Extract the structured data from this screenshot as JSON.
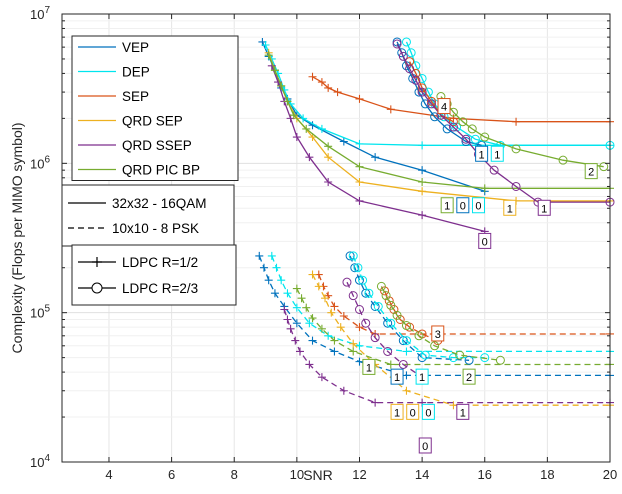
{
  "chart_data": {
    "type": "line",
    "xlabel": "SNR",
    "ylabel": "Complexity (Flops per MIMO symbol)",
    "xlim": [
      2.5,
      20
    ],
    "ylim": [
      10000,
      10000000
    ],
    "y_scale": "log",
    "grid": true,
    "xticks": [
      4,
      6,
      8,
      10,
      12,
      14,
      16,
      18,
      20
    ],
    "xtick_labels": [
      "4",
      "6",
      "8",
      "10",
      "12",
      "14",
      "16",
      "18",
      "20"
    ],
    "yticks": [
      10000,
      100000,
      1000000,
      10000000
    ],
    "ytick_labels": [
      {
        "base": "10",
        "exp": "4"
      },
      {
        "base": "10",
        "exp": "5"
      },
      {
        "base": "10",
        "exp": "6"
      },
      {
        "base": "10",
        "exp": "7"
      }
    ],
    "legends": [
      {
        "placement": "top-left",
        "entries": [
          {
            "label": "VEP",
            "color": "#0072BD",
            "line": "solid",
            "marker": "none"
          },
          {
            "label": "DEP",
            "color": "#00E5EE",
            "line": "solid",
            "marker": "none"
          },
          {
            "label": "SEP",
            "color": "#D95319",
            "line": "solid",
            "marker": "none"
          },
          {
            "label": "QRD SEP",
            "color": "#EDB120",
            "line": "solid",
            "marker": "none"
          },
          {
            "label": "QRD SSEP",
            "color": "#7E2F8E",
            "line": "solid",
            "marker": "none"
          },
          {
            "label": "QRD PIC BP",
            "color": "#77AC30",
            "line": "solid",
            "marker": "none"
          }
        ]
      },
      {
        "placement": "left",
        "entries": [
          {
            "label": "32x32 - 16QAM",
            "color": "#000000",
            "line": "solid",
            "marker": "none"
          },
          {
            "label": "10x10 - 8 PSK",
            "color": "#000000",
            "line": "dashed",
            "marker": "none"
          }
        ]
      },
      {
        "placement": "left",
        "entries": [
          {
            "label": "LDPC R=1/2",
            "color": "#000000",
            "line": "solid",
            "marker": "plus"
          },
          {
            "label": "LDPC R=2/3",
            "color": "#000000",
            "line": "solid",
            "marker": "circle"
          }
        ]
      }
    ],
    "series": [
      {
        "color": "#0072BD",
        "dash": "solid",
        "marker": "plus",
        "x": [
          8.9,
          9.1,
          9.3,
          9.5,
          9.7,
          10.0,
          10.5,
          11.5,
          12.5,
          14.0,
          16.0
        ],
        "y": [
          6500000,
          5200000,
          4200000,
          3200000,
          2700000,
          2100000,
          1800000,
          1400000,
          1100000,
          900000,
          650000
        ]
      },
      {
        "color": "#00E5EE",
        "dash": "solid",
        "marker": "plus",
        "x": [
          9.0,
          9.2,
          9.4,
          9.6,
          9.8,
          10.2,
          10.8,
          12.0,
          14.0,
          16.5,
          20.0
        ],
        "y": [
          6200000,
          5000000,
          4000000,
          3100000,
          2500000,
          2000000,
          1700000,
          1350000,
          1320000,
          1320000,
          1320000
        ]
      },
      {
        "color": "#D95319",
        "dash": "solid",
        "marker": "plus",
        "x": [
          10.5,
          10.8,
          11.0,
          11.3,
          12.0,
          13.0,
          15.0,
          17.0,
          20.0
        ],
        "y": [
          3800000,
          3500000,
          3200000,
          3000000,
          2700000,
          2300000,
          2000000,
          1900000,
          1900000
        ]
      },
      {
        "color": "#EDB120",
        "dash": "solid",
        "marker": "plus",
        "x": [
          9.1,
          9.3,
          9.5,
          9.7,
          10.0,
          10.5,
          11.0,
          12.0,
          14.0,
          17.0,
          20.0
        ],
        "y": [
          5500000,
          4200000,
          3300000,
          2600000,
          2000000,
          1500000,
          1100000,
          750000,
          650000,
          560000,
          560000
        ]
      },
      {
        "color": "#7E2F8E",
        "dash": "solid",
        "marker": "plus",
        "x": [
          9.2,
          9.4,
          9.6,
          9.8,
          10.0,
          10.4,
          11.0,
          12.0,
          14.0,
          16.0
        ],
        "y": [
          4500000,
          3500000,
          2600000,
          2000000,
          1500000,
          1100000,
          750000,
          560000,
          450000,
          350000
        ]
      },
      {
        "color": "#77AC30",
        "dash": "solid",
        "marker": "plus",
        "x": [
          9.1,
          9.3,
          9.5,
          9.7,
          9.9,
          10.3,
          11.0,
          12.0,
          14.0,
          16.0,
          20.0
        ],
        "y": [
          5300000,
          4200000,
          3300000,
          2600000,
          2100000,
          1700000,
          1300000,
          950000,
          750000,
          680000,
          680000
        ]
      },
      {
        "color": "#0072BD",
        "dash": "solid",
        "marker": "circle",
        "x": [
          13.2,
          13.35,
          13.5,
          13.7,
          13.9,
          14.1,
          14.4,
          14.8,
          15.4,
          15.9
        ],
        "y": [
          6500000,
          5500000,
          4500000,
          3700000,
          3000000,
          2500000,
          2050000,
          1700000,
          1400000,
          1320000
        ]
      },
      {
        "color": "#00E5EE",
        "dash": "solid",
        "marker": "circle",
        "x": [
          13.5,
          13.65,
          13.8,
          14.0,
          14.2,
          14.4,
          14.7,
          15.1,
          15.7,
          16.5,
          20.0
        ],
        "y": [
          6500000,
          5500000,
          4500000,
          3700000,
          3000000,
          2500000,
          2050000,
          1750000,
          1450000,
          1320000,
          1320000
        ]
      },
      {
        "color": "#D95319",
        "dash": "solid",
        "marker": "circle",
        "x": [
          13.6,
          13.8,
          14.0,
          14.3,
          14.6,
          15.0
        ],
        "y": [
          4800000,
          4000000,
          3200000,
          2600000,
          2100000,
          1900000
        ]
      },
      {
        "color": "#7E2F8E",
        "dash": "solid",
        "marker": "circle",
        "x": [
          13.2,
          13.4,
          13.6,
          13.8,
          14.0,
          14.3,
          14.6,
          15.0,
          15.4,
          15.8,
          16.3,
          17.0,
          17.7,
          20.0
        ],
        "y": [
          6300000,
          5200000,
          4300000,
          3600000,
          3000000,
          2500000,
          2100000,
          1750000,
          1450000,
          1150000,
          900000,
          700000,
          550000,
          550000
        ]
      },
      {
        "color": "#77AC30",
        "dash": "solid",
        "marker": "circle",
        "x": [
          14.6,
          14.8,
          15.0,
          15.3,
          15.6,
          16.0,
          17.0,
          18.5,
          19.8
        ],
        "y": [
          2800000,
          2500000,
          2200000,
          1900000,
          1700000,
          1500000,
          1250000,
          1050000,
          950000
        ]
      },
      {
        "color": "#0072BD",
        "dash": "dashed",
        "marker": "plus",
        "x": [
          8.8,
          8.95,
          9.1,
          9.3,
          9.6,
          10.0,
          10.5,
          11.2,
          12.0,
          13.5,
          20.0
        ],
        "y": [
          240000,
          200000,
          165000,
          135000,
          110000,
          85000,
          65000,
          55000,
          47000,
          38000,
          38000
        ]
      },
      {
        "color": "#00E5EE",
        "dash": "dashed",
        "marker": "plus",
        "x": [
          9.2,
          9.35,
          9.5,
          9.7,
          10.0,
          10.4,
          11.0,
          12.0,
          13.5,
          20.0
        ],
        "y": [
          240000,
          200000,
          165000,
          135000,
          108000,
          85000,
          70000,
          60000,
          55000,
          55000
        ]
      },
      {
        "color": "#D95319",
        "dash": "dashed",
        "marker": "plus",
        "x": [
          10.7,
          10.85,
          11.0,
          11.2,
          11.5,
          12.0,
          12.5,
          20.0
        ],
        "y": [
          180000,
          150000,
          130000,
          110000,
          95000,
          80000,
          72000,
          72000
        ]
      },
      {
        "color": "#EDB120",
        "dash": "dashed",
        "marker": "plus",
        "x": [
          10.5,
          10.7,
          10.9,
          11.1,
          11.4,
          11.8,
          12.5,
          13.5,
          15.0,
          20.0
        ],
        "y": [
          180000,
          150000,
          125000,
          100000,
          80000,
          62000,
          45000,
          30000,
          24000,
          24000
        ]
      },
      {
        "color": "#7E2F8E",
        "dash": "dashed",
        "marker": "plus",
        "x": [
          9.6,
          9.7,
          9.8,
          9.95,
          10.1,
          10.4,
          10.8,
          11.5,
          12.5,
          14.0,
          20.0
        ],
        "y": [
          105000,
          90000,
          78000,
          65000,
          55000,
          45000,
          37000,
          30000,
          25000,
          25000,
          25000
        ]
      },
      {
        "color": "#77AC30",
        "dash": "dashed",
        "marker": "plus",
        "x": [
          10.0,
          10.15,
          10.3,
          10.5,
          10.8,
          11.2,
          11.8,
          13.0,
          20.0
        ],
        "y": [
          145000,
          125000,
          108000,
          92000,
          78000,
          65000,
          55000,
          45000,
          45000
        ]
      },
      {
        "color": "#0072BD",
        "dash": "dashed",
        "marker": "circle",
        "x": [
          11.7,
          11.85,
          12.0,
          12.2,
          12.5,
          12.9,
          13.4,
          14.0,
          15.5
        ],
        "y": [
          240000,
          200000,
          165000,
          135000,
          110000,
          85000,
          65000,
          50000,
          48000
        ]
      },
      {
        "color": "#00E5EE",
        "dash": "dashed",
        "marker": "circle",
        "x": [
          11.8,
          11.95,
          12.1,
          12.3,
          12.6,
          13.0,
          13.5,
          14.1,
          15.0,
          16.0
        ],
        "y": [
          240000,
          200000,
          165000,
          135000,
          110000,
          85000,
          65000,
          52000,
          50000,
          50000
        ]
      },
      {
        "color": "#D95319",
        "dash": "dashed",
        "marker": "circle",
        "x": [
          12.8,
          12.95,
          13.1,
          13.3,
          13.6,
          14.0,
          14.5
        ],
        "y": [
          140000,
          120000,
          105000,
          90000,
          80000,
          72000,
          65000
        ]
      },
      {
        "color": "#7E2F8E",
        "dash": "dashed",
        "marker": "circle",
        "x": [
          11.6,
          11.8,
          12.0,
          12.2,
          12.5,
          12.9,
          13.4,
          14.0
        ],
        "y": [
          160000,
          130000,
          105000,
          85000,
          68000,
          55000,
          45000,
          37000
        ]
      },
      {
        "color": "#77AC30",
        "dash": "dashed",
        "marker": "circle",
        "x": [
          12.7,
          12.85,
          13.0,
          13.2,
          13.5,
          13.9,
          14.4,
          15.2,
          16.5
        ],
        "y": [
          150000,
          130000,
          112000,
          96000,
          82000,
          70000,
          60000,
          52000,
          48000
        ]
      }
    ],
    "annotations": [
      {
        "text": "4",
        "x": 14.7,
        "y": 2400000,
        "color": "#D95319"
      },
      {
        "text": "1",
        "x": 15.9,
        "y": 1150000,
        "color": "#0072BD"
      },
      {
        "text": "1",
        "x": 16.4,
        "y": 1150000,
        "color": "#00E5EE"
      },
      {
        "text": "2",
        "x": 19.4,
        "y": 880000,
        "color": "#77AC30"
      },
      {
        "text": "1",
        "x": 14.8,
        "y": 520000,
        "color": "#77AC30"
      },
      {
        "text": "0",
        "x": 15.3,
        "y": 520000,
        "color": "#0072BD"
      },
      {
        "text": "0",
        "x": 15.8,
        "y": 520000,
        "color": "#00E5EE"
      },
      {
        "text": "1",
        "x": 16.8,
        "y": 500000,
        "color": "#EDB120"
      },
      {
        "text": "1",
        "x": 17.9,
        "y": 500000,
        "color": "#7E2F8E"
      },
      {
        "text": "0",
        "x": 16.0,
        "y": 300000,
        "color": "#7E2F8E"
      },
      {
        "text": "3",
        "x": 14.5,
        "y": 72000,
        "color": "#D95319"
      },
      {
        "text": "1",
        "x": 12.3,
        "y": 43000,
        "color": "#77AC30"
      },
      {
        "text": "1",
        "x": 13.2,
        "y": 37000,
        "color": "#0072BD"
      },
      {
        "text": "1",
        "x": 14.0,
        "y": 37000,
        "color": "#00E5EE"
      },
      {
        "text": "2",
        "x": 15.5,
        "y": 37000,
        "color": "#77AC30"
      },
      {
        "text": "1",
        "x": 13.2,
        "y": 21500,
        "color": "#EDB120"
      },
      {
        "text": "0",
        "x": 13.7,
        "y": 21500,
        "color": "#EDB120"
      },
      {
        "text": "0",
        "x": 14.2,
        "y": 21500,
        "color": "#00E5EE"
      },
      {
        "text": "1",
        "x": 15.3,
        "y": 21500,
        "color": "#7E2F8E"
      },
      {
        "text": "0",
        "x": 14.1,
        "y": 12800,
        "color": "#7E2F8E"
      }
    ]
  }
}
